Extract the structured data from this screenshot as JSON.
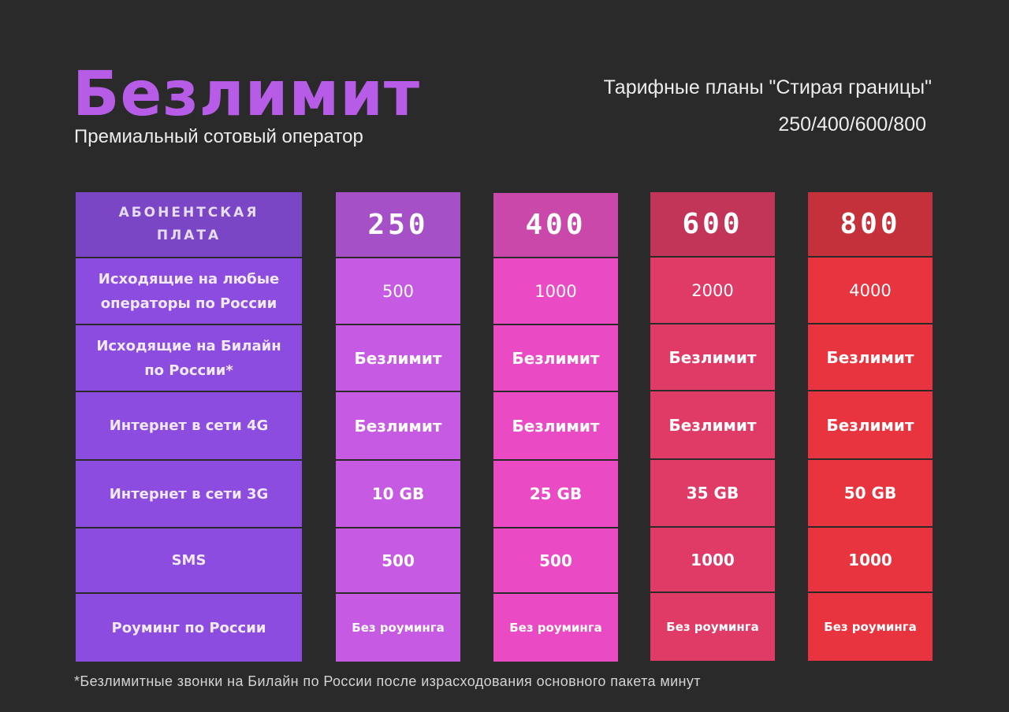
{
  "brand": {
    "name": "Безлимит",
    "tagline": "Премиальный сотовый оператор"
  },
  "header": {
    "plans_title": "Тарифные планы \"Стирая границы\"",
    "plans_list": "250/400/600/800"
  },
  "table": {
    "labels": {
      "head": "АБОНЕНТСКАЯ ПЛАТА",
      "rows": [
        "Исходящие на любые операторы по России",
        "Исходящие на Билайн по России*",
        "Интернет в сети 4G",
        "Интернет в сети 3G",
        "SMS",
        "Роуминг по России"
      ]
    },
    "plans": [
      {
        "price": "250",
        "values": [
          "500",
          "Безлимит",
          "Безлимит",
          "10 GB",
          "500",
          "Без роуминга"
        ]
      },
      {
        "price": "400",
        "values": [
          "1000",
          "Безлимит",
          "Безлимит",
          "25 GB",
          "500",
          "Без роуминга"
        ]
      },
      {
        "price": "600",
        "values": [
          "2000",
          "Безлимит",
          "Безлимит",
          "35 GB",
          "1000",
          "Без роуминга"
        ]
      },
      {
        "price": "800",
        "values": [
          "4000",
          "Безлимит",
          "Безлимит",
          "50 GB",
          "1000",
          "Без роуминга"
        ]
      }
    ]
  },
  "colors": {
    "background": "#2a2a2a",
    "brand": "#b65ce6",
    "labels_column": "#8d4ce0",
    "plan_250": "#c65ae2",
    "plan_400": "#ea4bc4",
    "plan_600": "#e03a66",
    "plan_800": "#e8343e"
  },
  "footnote": "*Безлимитные звонки на Билайн по России после израсходования основного пакета минут"
}
